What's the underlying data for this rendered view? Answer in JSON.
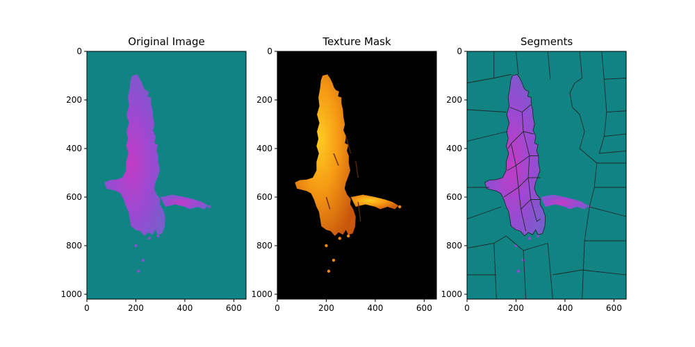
{
  "chart_data": [
    {
      "type": "image",
      "title": "Original Image",
      "image_size": [
        650,
        1020
      ],
      "xlim": [
        0,
        650
      ],
      "ylim": [
        1020,
        0
      ],
      "xticks": [
        0,
        200,
        400,
        600
      ],
      "yticks": [
        0,
        200,
        400,
        600,
        800,
        1000
      ],
      "background_color": "#128383",
      "content": "purple-magenta landmass on teal background"
    },
    {
      "type": "image",
      "title": "Texture Mask",
      "image_size": [
        650,
        1020
      ],
      "xlim": [
        0,
        650
      ],
      "ylim": [
        1020,
        0
      ],
      "xticks": [
        0,
        200,
        400,
        600
      ],
      "yticks": [
        0,
        200,
        400,
        600,
        800,
        1000
      ],
      "background_color": "#000000",
      "content": "orange-yellow textured landmass on black background"
    },
    {
      "type": "image",
      "title": "Segments",
      "image_size": [
        650,
        1020
      ],
      "xlim": [
        0,
        650
      ],
      "ylim": [
        1020,
        0
      ],
      "xticks": [
        0,
        200,
        400,
        600
      ],
      "yticks": [
        0,
        200,
        400,
        600,
        800,
        1000
      ],
      "background_color": "#128383",
      "content": "superpixel boundaries drawn in dark lines over the original image"
    }
  ],
  "colors": {
    "teal": "#128383",
    "purple": "#8a4fd0",
    "magenta": "#b63fc9",
    "orange": "#f08a12",
    "yellow": "#ffc21a",
    "black": "#000000",
    "boundary": "#1c2a2a"
  }
}
